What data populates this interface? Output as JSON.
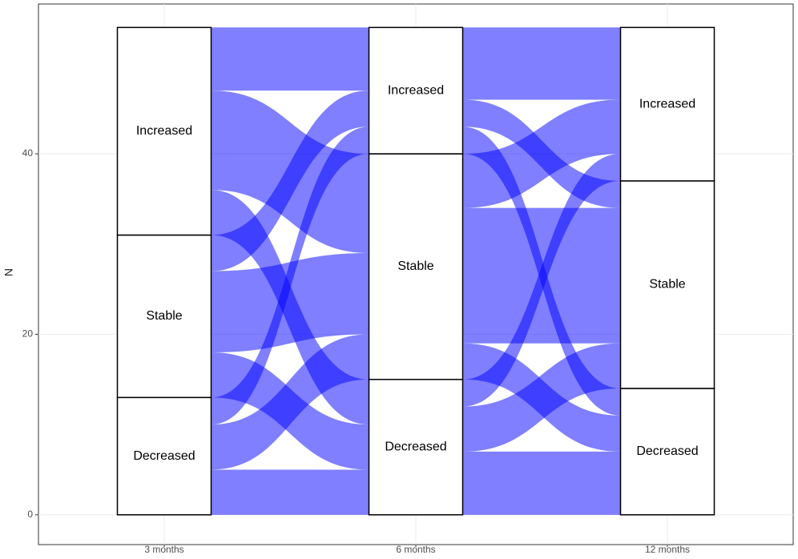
{
  "chart_data": {
    "type": "alluvial",
    "y_label": "N",
    "categories": [
      "3 months",
      "6 months",
      "12 months"
    ],
    "strata": [
      "Decreased",
      "Stable",
      "Increased"
    ],
    "flows": [
      [
        [
          5,
          5,
          3
        ],
        [
          5,
          9,
          4
        ],
        [
          5,
          11,
          7
        ]
      ],
      [
        [
          7,
          5,
          3
        ],
        [
          4,
          15,
          6
        ],
        [
          3,
          3,
          8
        ]
      ]
    ],
    "color": "#0000ff",
    "ylim": [
      -3.3,
      56.6
    ],
    "yticks": [
      0,
      20,
      40
    ],
    "grid": true
  }
}
